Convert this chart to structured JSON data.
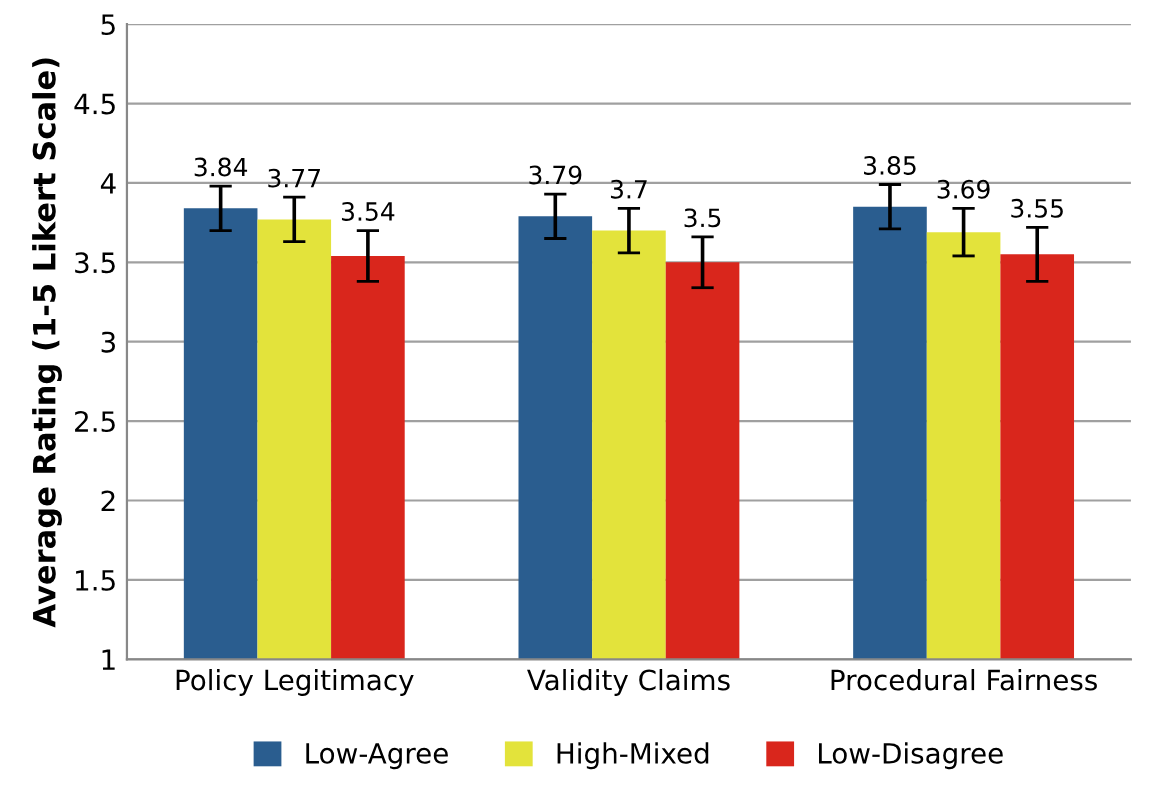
{
  "chart_data": {
    "type": "bar",
    "ylabel": "Average Rating (1-5 Likert Scale)",
    "categories": [
      "Policy Legitimacy",
      "Validity Claims",
      "Procedural Fairness"
    ],
    "series": [
      {
        "name": "Low-Agree",
        "color": "#2a5d8f",
        "values": [
          3.84,
          3.79,
          3.85
        ],
        "errors": [
          0.14,
          0.14,
          0.14
        ]
      },
      {
        "name": "High-Mixed",
        "color": "#e3e33b",
        "values": [
          3.77,
          3.7,
          3.69
        ],
        "errors": [
          0.14,
          0.14,
          0.15
        ]
      },
      {
        "name": "Low-Disagree",
        "color": "#d9261c",
        "values": [
          3.54,
          3.5,
          3.55
        ],
        "errors": [
          0.16,
          0.16,
          0.17
        ]
      }
    ],
    "ylim": [
      1,
      5
    ],
    "yticks": [
      1,
      1.5,
      2,
      2.5,
      3,
      3.5,
      4,
      4.5,
      5
    ],
    "grid": "y",
    "legend": "bottom",
    "data_labels": true
  }
}
